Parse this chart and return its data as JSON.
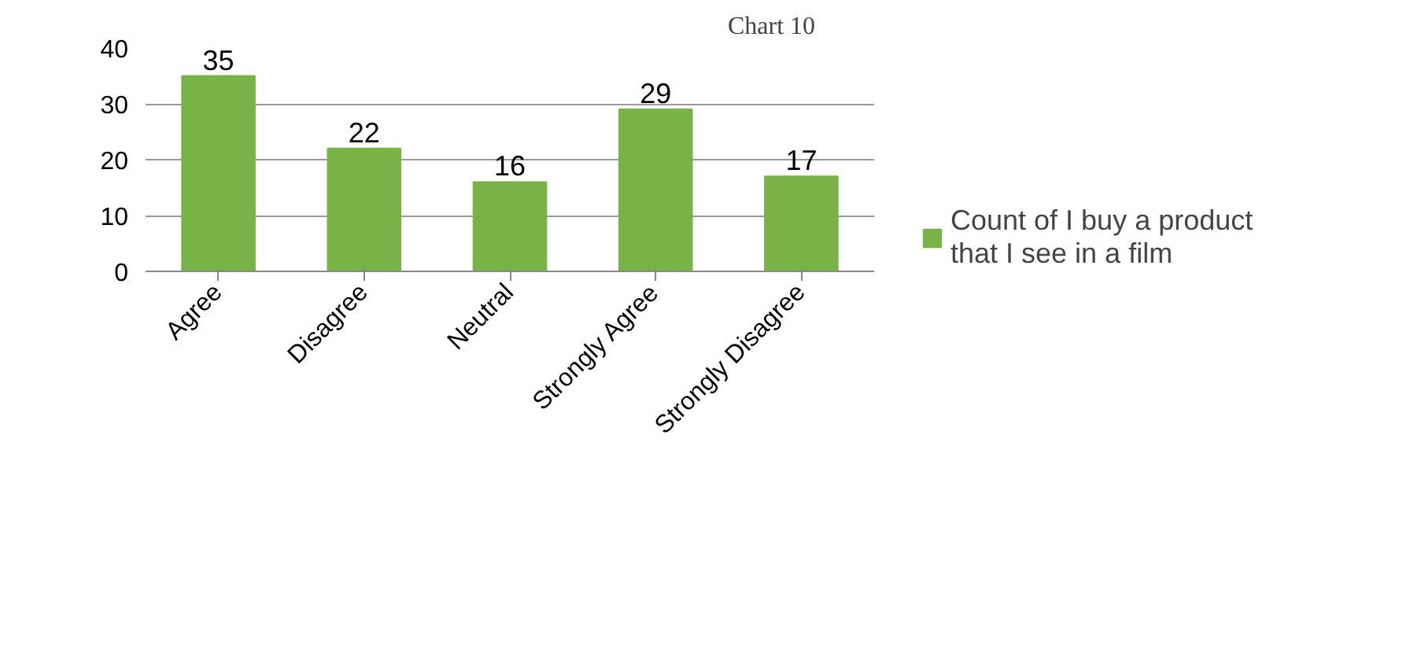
{
  "chart_data": {
    "type": "bar",
    "title": "Chart 10",
    "categories": [
      "Agree",
      "Disagree",
      "Neutral",
      "Strongly Agree",
      "Strongly Disagree"
    ],
    "series": [
      {
        "name": "Count of I buy a product that I see in a film",
        "color": "#77b347",
        "values": [
          35,
          22,
          16,
          29,
          17
        ]
      }
    ],
    "ylim": [
      0,
      40
    ],
    "yticks": [
      0,
      10,
      20,
      30,
      40
    ],
    "grid": "y",
    "legend": "right",
    "data_labels": true
  }
}
